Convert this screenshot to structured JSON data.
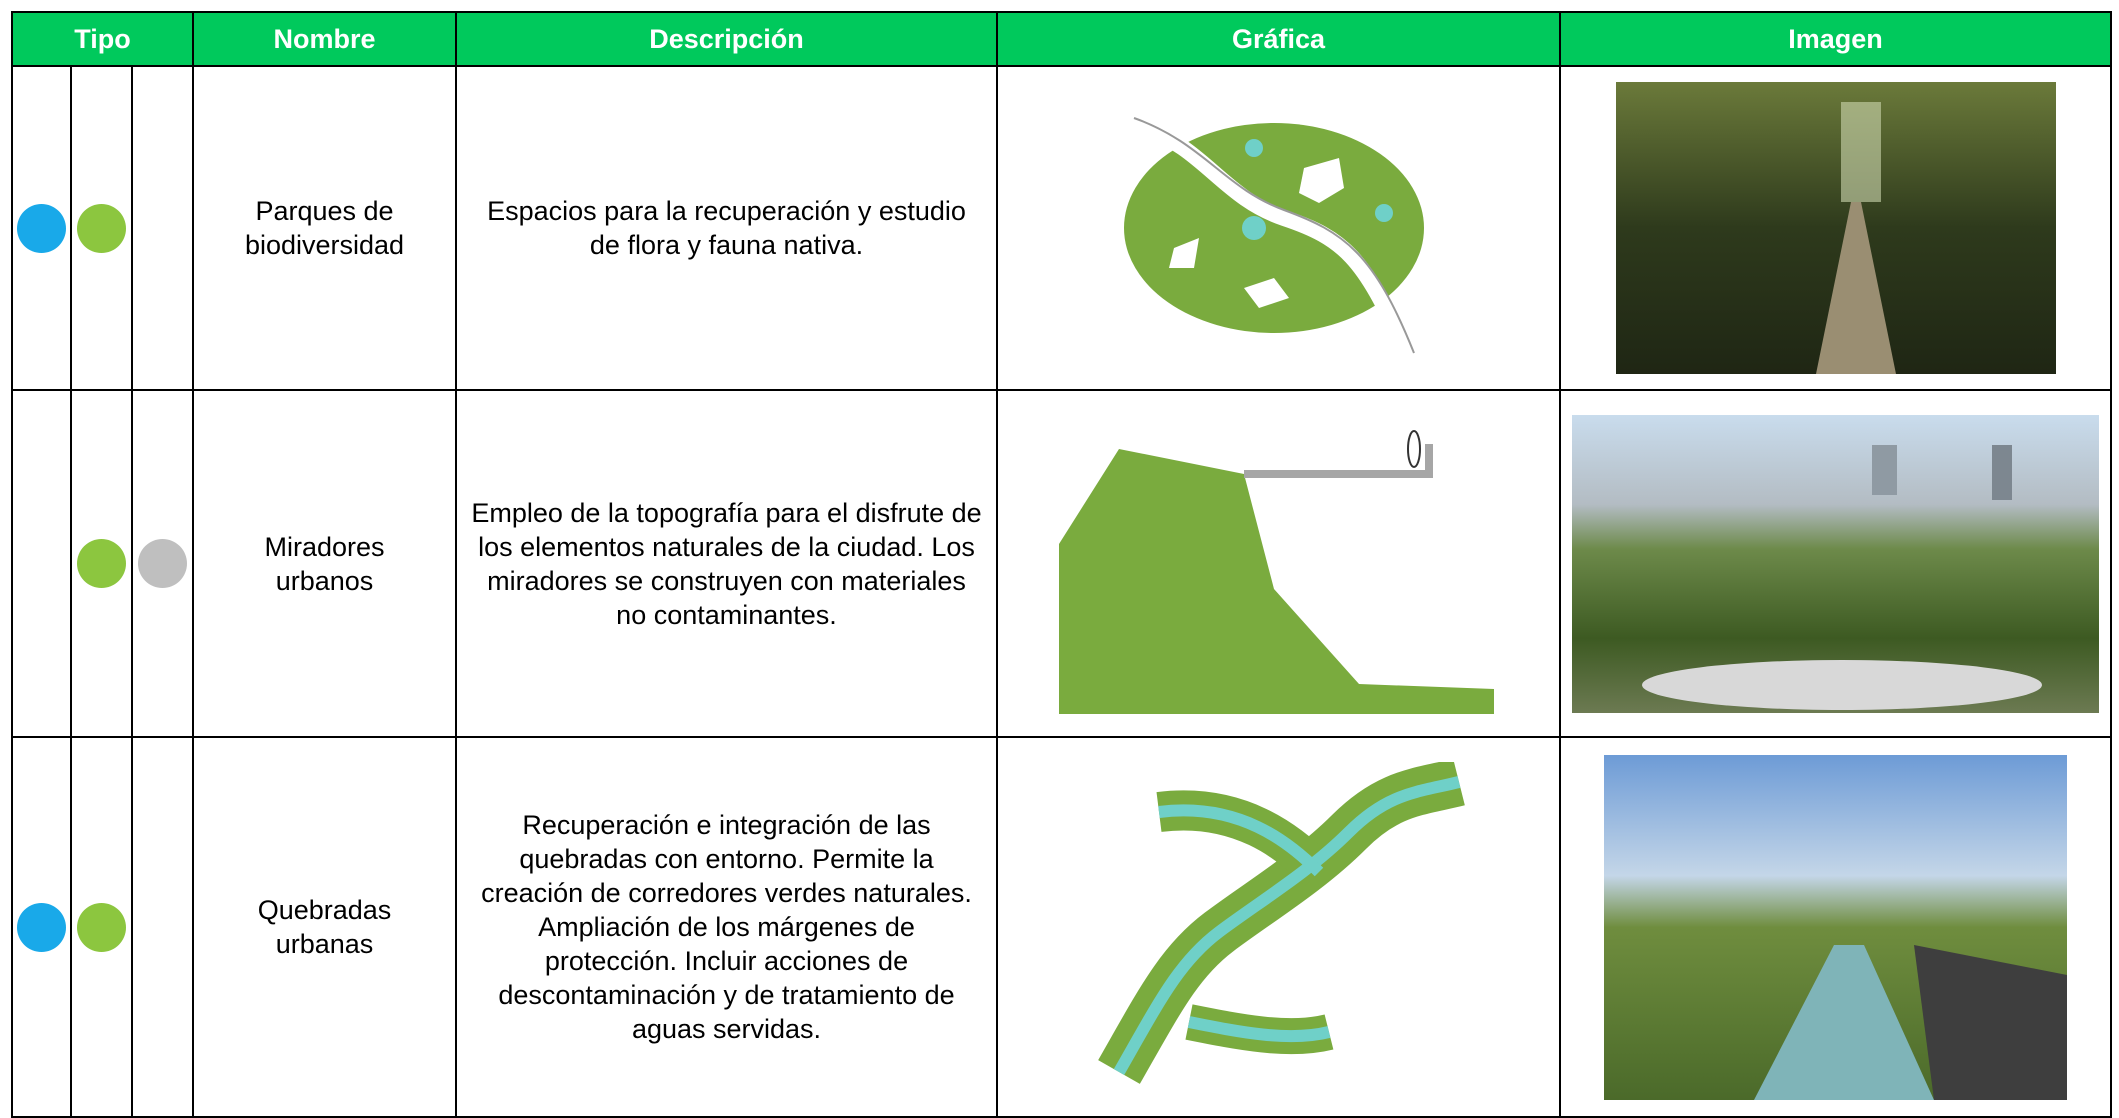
{
  "table": {
    "header": [
      "Tipo",
      "Nombre",
      "Descripción",
      "Gráfica",
      "Imagen"
    ],
    "rows": [
      {
        "name": "Parques de biodiversidad",
        "description": "Espacios para la recuperación y estudio de flora y fauna nativa."
      },
      {
        "name": "Miradores urbanos",
        "description": "Empleo de la topografía para el disfrute de los elementos naturales de la ciudad. Los miradores se construyen con materiales no contaminantes."
      },
      {
        "name": "Quebradas urbanas",
        "description": "Recuperación e integración de las quebradas con entorno. Permite la creación de corredores verdes naturales. Ampliación de los márgenes de protección. Incluir acciones de descontaminación y de tratamiento de aguas servidas."
      }
    ]
  }
}
